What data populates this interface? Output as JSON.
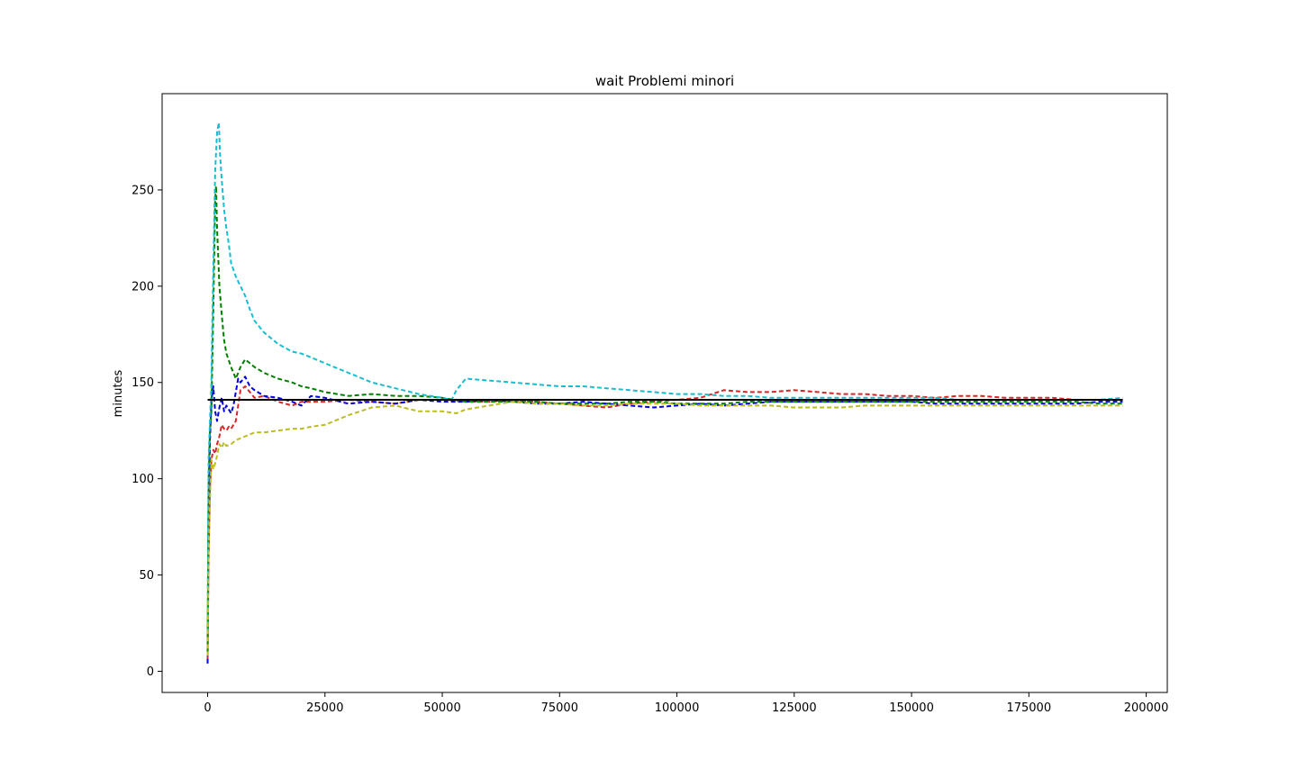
{
  "chart_data": {
    "type": "line",
    "title": "wait Problemi minori",
    "xlabel": "",
    "ylabel": "minutes",
    "xlim": [
      -9700,
      204500
    ],
    "ylim": [
      -11,
      300
    ],
    "xticks": [
      0,
      25000,
      50000,
      75000,
      100000,
      125000,
      150000,
      175000,
      200000
    ],
    "yticks": [
      0,
      50,
      100,
      150,
      200,
      250
    ],
    "grid": false,
    "legend": "none",
    "reference_line": {
      "value": 141,
      "x": [
        0,
        195000
      ],
      "color": "#000000",
      "style": "solid"
    },
    "series": [
      {
        "color": "#d62728",
        "style": "dashed",
        "x": [
          0,
          200,
          500,
          800,
          1200,
          1600,
          2000,
          2500,
          3000,
          3500,
          4000,
          4500,
          5000,
          6000,
          7000,
          8000,
          9000,
          10000,
          12000,
          15000,
          18000,
          20000,
          25000,
          30000,
          35000,
          40000,
          45000,
          50000,
          55000,
          60000,
          65000,
          70000,
          75000,
          80000,
          85000,
          90000,
          95000,
          100000,
          105000,
          110000,
          115000,
          120000,
          125000,
          130000,
          135000,
          140000,
          145000,
          150000,
          155000,
          160000,
          165000,
          170000,
          175000,
          180000,
          185000,
          190000,
          195000
        ],
        "y": [
          6,
          60,
          95,
          110,
          115,
          113,
          118,
          122,
          128,
          126,
          125,
          127,
          126,
          130,
          146,
          148,
          145,
          142,
          143,
          140,
          138,
          140,
          140,
          141,
          140,
          139,
          141,
          141,
          140,
          140,
          141,
          140,
          139,
          138,
          137,
          139,
          140,
          141,
          142,
          146,
          145,
          145,
          146,
          145,
          144,
          144,
          143,
          143,
          142,
          143,
          143,
          142,
          142,
          142,
          141,
          141,
          141
        ]
      },
      {
        "color": "#0000dd",
        "style": "dashed",
        "x": [
          0,
          200,
          500,
          800,
          1200,
          1600,
          2000,
          2500,
          3000,
          3500,
          4000,
          4500,
          5000,
          5500,
          6000,
          6500,
          7000,
          8000,
          9000,
          10000,
          12000,
          15000,
          18000,
          20000,
          22000,
          25000,
          30000,
          35000,
          40000,
          45000,
          50000,
          55000,
          60000,
          65000,
          70000,
          75000,
          80000,
          85000,
          90000,
          95000,
          100000,
          105000,
          110000,
          115000,
          120000,
          125000,
          130000,
          135000,
          140000,
          145000,
          150000,
          155000,
          160000,
          165000,
          170000,
          175000,
          180000,
          185000,
          190000,
          195000
        ],
        "y": [
          4,
          80,
          120,
          140,
          148,
          135,
          130,
          137,
          142,
          135,
          138,
          136,
          134,
          138,
          145,
          152,
          150,
          153,
          148,
          146,
          143,
          142,
          140,
          138,
          143,
          142,
          139,
          140,
          139,
          141,
          140,
          140,
          141,
          140,
          139,
          139,
          140,
          139,
          138,
          137,
          138,
          139,
          138,
          139,
          140,
          140,
          140,
          140,
          140,
          140,
          140,
          139,
          139,
          139,
          139,
          139,
          139,
          139,
          140,
          140
        ]
      },
      {
        "color": "#008000",
        "style": "dashed",
        "x": [
          0,
          200,
          500,
          800,
          1000,
          1300,
          1600,
          1800,
          2000,
          2500,
          3000,
          3500,
          4000,
          5000,
          6000,
          7000,
          8000,
          9000,
          10000,
          12000,
          15000,
          18000,
          20000,
          22000,
          25000,
          30000,
          35000,
          40000,
          45000,
          50000,
          55000,
          60000,
          65000,
          70000,
          75000,
          80000,
          85000,
          90000,
          95000,
          100000,
          105000,
          110000,
          115000,
          120000,
          125000,
          130000,
          135000,
          140000,
          145000,
          150000,
          155000,
          160000,
          165000,
          170000,
          175000,
          180000,
          185000,
          190000,
          195000
        ],
        "y": [
          10,
          100,
          125,
          135,
          160,
          200,
          245,
          252,
          230,
          200,
          185,
          172,
          165,
          158,
          152,
          158,
          162,
          160,
          158,
          155,
          152,
          150,
          148,
          147,
          145,
          143,
          144,
          143,
          143,
          142,
          140,
          140,
          140,
          140,
          139,
          139,
          139,
          140,
          140,
          139,
          139,
          139,
          140,
          140,
          140,
          140,
          140,
          140,
          140,
          140,
          140,
          140,
          140,
          140,
          140,
          140,
          140,
          139,
          139
        ]
      },
      {
        "color": "#17becf",
        "style": "dashed",
        "x": [
          0,
          200,
          500,
          800,
          1000,
          1300,
          1600,
          2000,
          2400,
          2600,
          3000,
          3500,
          4000,
          4500,
          5000,
          6000,
          7000,
          8000,
          9000,
          10000,
          12000,
          15000,
          18000,
          20000,
          22000,
          25000,
          28000,
          30000,
          35000,
          40000,
          45000,
          50000,
          52000,
          53000,
          55000,
          60000,
          65000,
          70000,
          75000,
          80000,
          85000,
          90000,
          95000,
          100000,
          105000,
          110000,
          115000,
          120000,
          125000,
          130000,
          135000,
          140000,
          145000,
          150000,
          155000,
          160000,
          165000,
          170000,
          175000,
          180000,
          185000,
          190000,
          195000
        ],
        "y": [
          20,
          110,
          130,
          150,
          180,
          220,
          260,
          280,
          285,
          270,
          255,
          240,
          230,
          222,
          212,
          205,
          200,
          195,
          188,
          182,
          176,
          170,
          166,
          165,
          163,
          160,
          157,
          155,
          150,
          147,
          144,
          142,
          141,
          146,
          152,
          151,
          150,
          149,
          148,
          148,
          147,
          146,
          145,
          144,
          144,
          143,
          143,
          142,
          142,
          142,
          142,
          142,
          142,
          142,
          142,
          141,
          141,
          141,
          141,
          141,
          141,
          141,
          142
        ]
      },
      {
        "color": "#bcbd22",
        "style": "dashed",
        "x": [
          0,
          200,
          500,
          800,
          1200,
          1600,
          2000,
          2500,
          3000,
          3500,
          4000,
          5000,
          6000,
          8000,
          10000,
          12000,
          15000,
          18000,
          20000,
          22000,
          25000,
          28000,
          30000,
          35000,
          40000,
          45000,
          50000,
          53000,
          55000,
          60000,
          65000,
          70000,
          75000,
          80000,
          85000,
          90000,
          95000,
          100000,
          105000,
          110000,
          115000,
          120000,
          125000,
          130000,
          135000,
          140000,
          145000,
          150000,
          155000,
          160000,
          165000,
          170000,
          175000,
          180000,
          185000,
          190000,
          195000
        ],
        "y": [
          8,
          60,
          90,
          110,
          105,
          108,
          112,
          118,
          116,
          119,
          117,
          118,
          120,
          122,
          124,
          124,
          125,
          126,
          126,
          127,
          128,
          131,
          133,
          137,
          138,
          135,
          135,
          134,
          136,
          138,
          140,
          139,
          139,
          138,
          138,
          139,
          139,
          139,
          138,
          138,
          138,
          138,
          137,
          137,
          137,
          138,
          138,
          138,
          138,
          138,
          138,
          138,
          138,
          138,
          138,
          138,
          138
        ]
      }
    ]
  }
}
